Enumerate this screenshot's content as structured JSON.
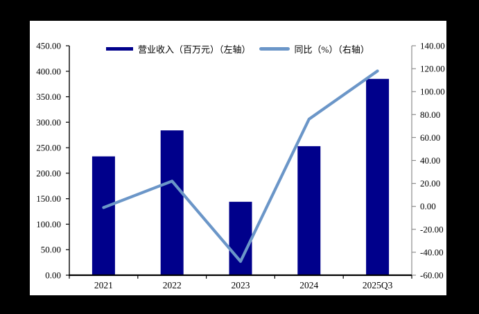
{
  "chart_data": {
    "type": "bar",
    "combo": "bar+line",
    "title": "",
    "categories": [
      "2021",
      "2022",
      "2023",
      "2024",
      "2025Q3"
    ],
    "series": [
      {
        "name": "营业收入（百万元）（左轴）",
        "type": "bar",
        "axis": "left",
        "color": "#00008B",
        "values": [
          233,
          284,
          144,
          253,
          385
        ]
      },
      {
        "name": "同比（%）（右轴）",
        "type": "line",
        "axis": "right",
        "color": "#6B96C8",
        "values": [
          -1,
          22,
          -48,
          76,
          118
        ]
      }
    ],
    "left_axis": {
      "min": 0,
      "max": 450,
      "step": 50,
      "tick_labels": [
        "0.00",
        "50.00",
        "100.00",
        "150.00",
        "200.00",
        "250.00",
        "300.00",
        "350.00",
        "400.00",
        "450.00"
      ]
    },
    "right_axis": {
      "min": -60,
      "max": 140,
      "step": 20,
      "tick_labels": [
        "-60.00",
        "-40.00",
        "-20.00",
        "0.00",
        "20.00",
        "40.00",
        "60.00",
        "80.00",
        "100.00",
        "120.00",
        "140.00"
      ]
    },
    "legend_position": "top",
    "grid": false
  },
  "colors": {
    "background": "#000000",
    "panel": "#FFFFFF",
    "bar": "#00008B",
    "line": "#6B96C8",
    "axis": "#000000",
    "right_axis_line": "#8C8C8C",
    "text": "#000000"
  }
}
